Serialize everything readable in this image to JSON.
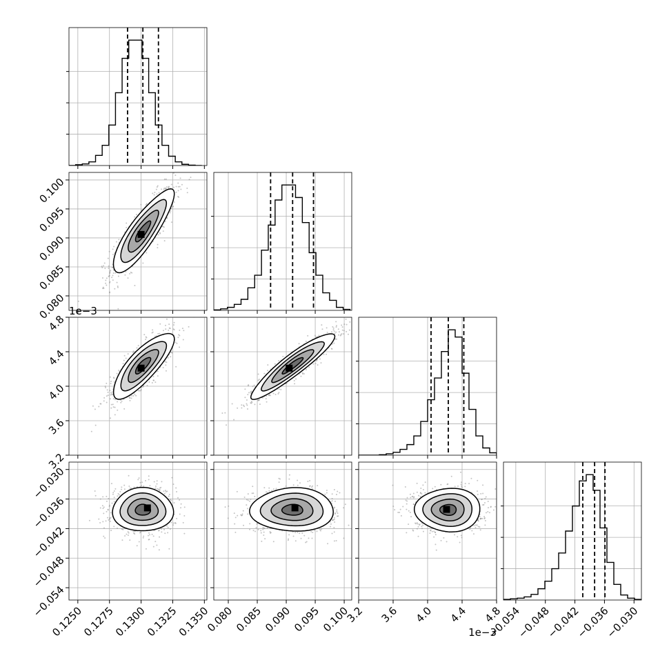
{
  "chart_data": {
    "type": "corner",
    "grid": true,
    "parameters": [
      {
        "range": [
          0.1243,
          0.1352
        ],
        "ticks": [
          0.125,
          0.1275,
          0.13,
          0.1325,
          0.135
        ],
        "tick_labels": [
          "0.1250",
          "0.1275",
          "0.1300",
          "0.1325",
          "0.1350"
        ],
        "offset_label": "",
        "quantiles": [
          0.12893,
          0.13014,
          0.13137
        ]
      },
      {
        "range": [
          0.0775,
          0.1013
        ],
        "ticks": [
          0.08,
          0.085,
          0.09,
          0.095,
          0.1
        ],
        "tick_labels": [
          "0.080",
          "0.085",
          "0.090",
          "0.095",
          "0.100"
        ],
        "offset_label": "",
        "quantiles": [
          0.0873,
          0.0911,
          0.0947
        ]
      },
      {
        "range": [
          3.2,
          4.8
        ],
        "ticks": [
          3.2,
          3.6,
          4.0,
          4.4,
          4.8
        ],
        "tick_labels": [
          "3.2",
          "3.6",
          "4.0",
          "4.4",
          "4.8"
        ],
        "offset_label": "1e−3",
        "quantiles": [
          4.04,
          4.24,
          4.42
        ]
      },
      {
        "range": [
          -0.0565,
          -0.0285
        ],
        "ticks": [
          -0.054,
          -0.048,
          -0.042,
          -0.036,
          -0.03
        ],
        "tick_labels": [
          "−0.054",
          "−0.048",
          "−0.042",
          "−0.036",
          "−0.030"
        ],
        "offset_label": "",
        "quantiles": [
          -0.0404,
          -0.038,
          -0.0359
        ]
      }
    ],
    "histograms": [
      {
        "edges": [
          0.1243,
          0.1348
        ],
        "counts": [
          0,
          2,
          4,
          9,
          25,
          50,
          100,
          180,
          265,
          310,
          310,
          265,
          180,
          100,
          50,
          23,
          9,
          3,
          1,
          0
        ]
      },
      {
        "edges": [
          0.0775,
          0.101
        ],
        "counts": [
          1,
          3,
          6,
          12,
          22,
          45,
          70,
          120,
          170,
          220,
          250,
          250,
          225,
          175,
          115,
          70,
          35,
          20,
          6,
          2
        ]
      },
      {
        "edges": [
          3.2,
          4.8
        ],
        "counts": [
          0,
          0,
          0,
          1,
          3,
          6,
          12,
          22,
          40,
          70,
          115,
          160,
          215,
          260,
          245,
          170,
          95,
          40,
          15,
          5
        ]
      },
      {
        "edges": [
          -0.0565,
          -0.0285
        ],
        "counts": [
          1,
          2,
          3,
          5,
          9,
          18,
          30,
          50,
          75,
          110,
          150,
          190,
          200,
          175,
          115,
          60,
          25,
          8,
          3,
          1
        ]
      }
    ],
    "pairs": [
      {
        "x": 0,
        "y": 1,
        "center": [
          0.13014,
          0.0911
        ],
        "sx": 0.0012,
        "sy": 0.0036,
        "rho": 0.85,
        "peak": [
          0.13,
          0.0906
        ]
      },
      {
        "x": 0,
        "y": 2,
        "center": [
          0.13014,
          4.24
        ],
        "sx": 0.0012,
        "sy": 0.19,
        "rho": 0.8,
        "peak": [
          0.13,
          4.21
        ]
      },
      {
        "x": 1,
        "y": 2,
        "center": [
          0.0911,
          4.24
        ],
        "sx": 0.0036,
        "sy": 0.19,
        "rho": 0.92,
        "peak": [
          0.0905,
          4.21
        ]
      },
      {
        "x": 0,
        "y": 3,
        "center": [
          0.13014,
          -0.0382
        ],
        "sx": 0.0012,
        "sy": 0.0022,
        "rho": 0.0,
        "peak": [
          0.1305,
          -0.0378
        ]
      },
      {
        "x": 1,
        "y": 3,
        "center": [
          0.0911,
          -0.0382
        ],
        "sx": 0.0036,
        "sy": 0.0022,
        "rho": 0.0,
        "peak": [
          0.0915,
          -0.0378
        ]
      },
      {
        "x": 2,
        "y": 3,
        "center": [
          4.24,
          -0.0382
        ],
        "sx": 0.19,
        "sy": 0.0022,
        "rho": 0.0,
        "peak": [
          4.22,
          -0.0381
        ]
      }
    ],
    "contour_levels_sigma": [
      0.5,
      1.0,
      1.5,
      2.0
    ]
  }
}
